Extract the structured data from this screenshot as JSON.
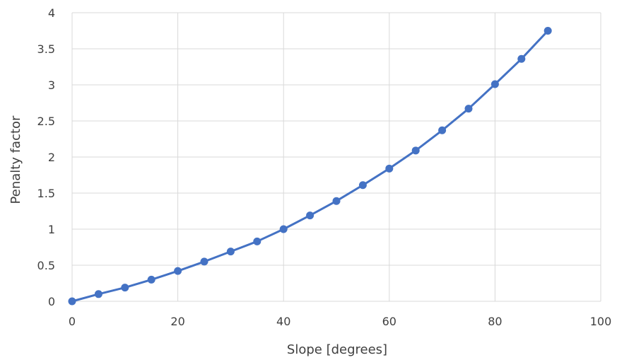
{
  "chart_data": {
    "type": "line",
    "title": "",
    "xlabel": "Slope  [degrees]",
    "ylabel": "Penalty factor",
    "xlim": [
      0,
      100
    ],
    "ylim": [
      0,
      4
    ],
    "xticks": [
      0,
      20,
      40,
      60,
      80,
      100
    ],
    "yticks": [
      0,
      0.5,
      1,
      1.5,
      2,
      2.5,
      3,
      3.5,
      4
    ],
    "grid": true,
    "legend": "none",
    "color": "#4472c4",
    "series": [
      {
        "x": [
          0,
          5,
          10,
          15,
          20,
          25,
          30,
          35,
          40,
          45,
          50,
          55,
          60,
          65,
          70,
          75,
          80,
          85,
          90
        ],
        "y": [
          0,
          0.1,
          0.19,
          0.3,
          0.42,
          0.55,
          0.69,
          0.83,
          1.0,
          1.19,
          1.39,
          1.61,
          1.84,
          2.09,
          2.37,
          2.67,
          3.01,
          3.36,
          3.75
        ]
      }
    ]
  }
}
